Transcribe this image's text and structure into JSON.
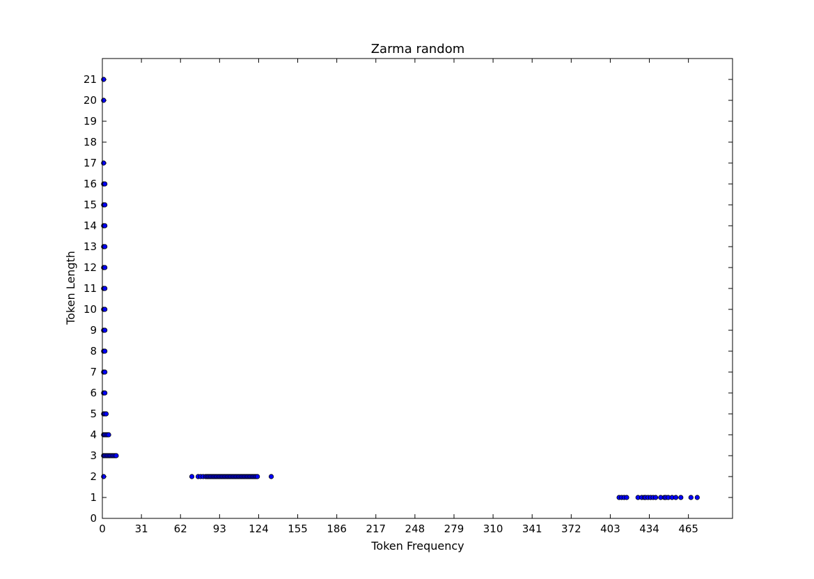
{
  "chart_data": {
    "type": "scatter",
    "title": "Zarma random",
    "xlabel": "Token Frequency",
    "ylabel": "Token Length",
    "xlim": [
      0,
      500
    ],
    "ylim": [
      0,
      22
    ],
    "xticks": [
      0,
      31,
      62,
      93,
      124,
      155,
      186,
      217,
      248,
      279,
      310,
      341,
      372,
      403,
      434,
      465
    ],
    "yticks": [
      0,
      1,
      2,
      3,
      4,
      5,
      6,
      7,
      8,
      9,
      10,
      11,
      12,
      13,
      14,
      15,
      16,
      17,
      18,
      19,
      20,
      21
    ],
    "grid": false,
    "marker_color": "#0000ff",
    "marker_edge_color": "#000000",
    "series": [
      {
        "points": [
          [
            1,
            21
          ],
          [
            1,
            20
          ],
          [
            1,
            17
          ],
          [
            1,
            16
          ],
          [
            2,
            16
          ],
          [
            1,
            15
          ],
          [
            2,
            15
          ],
          [
            1,
            14
          ],
          [
            2,
            14
          ],
          [
            1,
            13
          ],
          [
            2,
            13
          ],
          [
            1,
            12
          ],
          [
            2,
            12
          ],
          [
            1,
            11
          ],
          [
            2,
            11
          ],
          [
            1,
            10
          ],
          [
            2,
            10
          ],
          [
            1,
            9
          ],
          [
            2,
            9
          ],
          [
            1,
            8
          ],
          [
            2,
            8
          ],
          [
            1,
            7
          ],
          [
            2,
            7
          ],
          [
            1,
            6
          ],
          [
            2,
            6
          ],
          [
            1,
            5
          ],
          [
            2,
            5
          ],
          [
            3,
            5
          ],
          [
            1,
            4
          ],
          [
            2,
            4
          ],
          [
            3,
            4
          ],
          [
            4,
            4
          ],
          [
            5,
            4
          ],
          [
            1,
            3
          ],
          [
            2,
            3
          ],
          [
            3,
            3
          ],
          [
            4,
            3
          ],
          [
            5,
            3
          ],
          [
            6,
            3
          ],
          [
            7,
            3
          ],
          [
            8,
            3
          ],
          [
            9,
            3
          ],
          [
            10,
            3
          ],
          [
            11,
            3
          ],
          [
            1,
            2
          ],
          [
            71,
            2
          ],
          [
            76,
            2
          ],
          [
            78,
            2
          ],
          [
            80,
            2
          ],
          [
            82,
            2
          ],
          [
            83,
            2
          ],
          [
            84,
            2
          ],
          [
            85,
            2
          ],
          [
            86,
            2
          ],
          [
            87,
            2
          ],
          [
            88,
            2
          ],
          [
            89,
            2
          ],
          [
            90,
            2
          ],
          [
            91,
            2
          ],
          [
            92,
            2
          ],
          [
            93,
            2
          ],
          [
            94,
            2
          ],
          [
            95,
            2
          ],
          [
            96,
            2
          ],
          [
            97,
            2
          ],
          [
            98,
            2
          ],
          [
            99,
            2
          ],
          [
            100,
            2
          ],
          [
            101,
            2
          ],
          [
            102,
            2
          ],
          [
            103,
            2
          ],
          [
            104,
            2
          ],
          [
            105,
            2
          ],
          [
            106,
            2
          ],
          [
            107,
            2
          ],
          [
            108,
            2
          ],
          [
            109,
            2
          ],
          [
            110,
            2
          ],
          [
            111,
            2
          ],
          [
            112,
            2
          ],
          [
            113,
            2
          ],
          [
            114,
            2
          ],
          [
            115,
            2
          ],
          [
            116,
            2
          ],
          [
            117,
            2
          ],
          [
            118,
            2
          ],
          [
            119,
            2
          ],
          [
            120,
            2
          ],
          [
            121,
            2
          ],
          [
            122,
            2
          ],
          [
            123,
            2
          ],
          [
            134,
            2
          ],
          [
            410,
            1
          ],
          [
            412,
            1
          ],
          [
            414,
            1
          ],
          [
            416,
            1
          ],
          [
            425,
            1
          ],
          [
            428,
            1
          ],
          [
            430,
            1
          ],
          [
            431,
            1
          ],
          [
            433,
            1
          ],
          [
            435,
            1
          ],
          [
            437,
            1
          ],
          [
            439,
            1
          ],
          [
            443,
            1
          ],
          [
            446,
            1
          ],
          [
            447,
            1
          ],
          [
            449,
            1
          ],
          [
            452,
            1
          ],
          [
            455,
            1
          ],
          [
            459,
            1
          ],
          [
            467,
            1
          ],
          [
            472,
            1
          ]
        ]
      }
    ]
  }
}
